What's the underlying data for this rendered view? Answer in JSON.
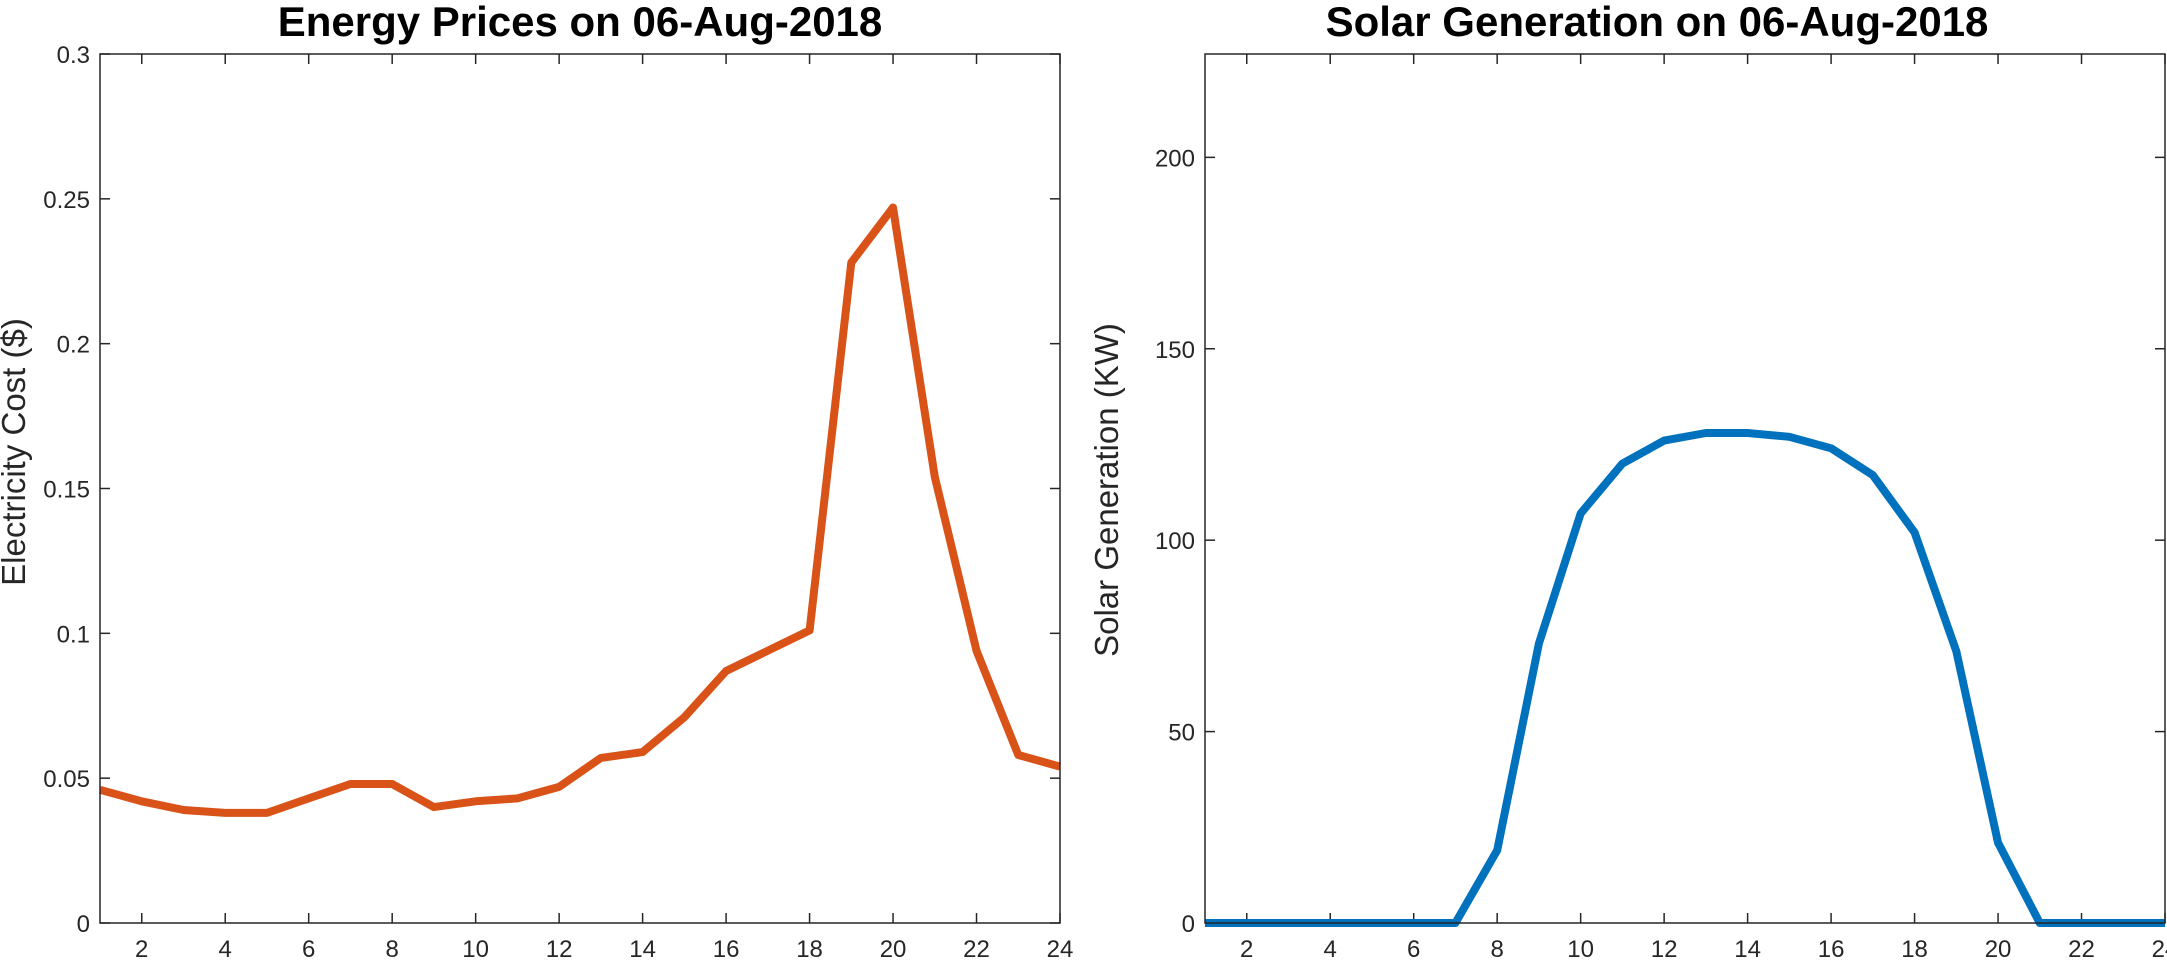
{
  "chart_data": [
    {
      "type": "line",
      "title": "Energy Prices on 06-Aug-2018",
      "xlabel": "",
      "ylabel": "Electricity Cost ($)",
      "xlim": [
        1,
        24
      ],
      "ylim": [
        0,
        0.3
      ],
      "xticks": [
        2,
        4,
        6,
        8,
        10,
        12,
        14,
        16,
        18,
        20,
        22,
        24
      ],
      "xtick_labels": [
        "2",
        "4",
        "6",
        "8",
        "10",
        "12",
        "14",
        "16",
        "18",
        "20",
        "22",
        "24"
      ],
      "yticks": [
        0,
        0.05,
        0.1,
        0.15,
        0.2,
        0.25,
        0.3
      ],
      "ytick_labels": [
        "0",
        "0.05",
        "0.1",
        "0.15",
        "0.2",
        "0.25",
        "0.3"
      ],
      "grid": false,
      "series": [
        {
          "name": "Electricity Cost",
          "color": "#D95319",
          "x": [
            1,
            2,
            3,
            4,
            5,
            6,
            7,
            8,
            9,
            10,
            11,
            12,
            13,
            14,
            15,
            16,
            17,
            18,
            19,
            20,
            21,
            22,
            23,
            24
          ],
          "values": [
            0.046,
            0.042,
            0.039,
            0.038,
            0.038,
            0.043,
            0.048,
            0.048,
            0.04,
            0.042,
            0.043,
            0.047,
            0.057,
            0.059,
            0.071,
            0.087,
            0.094,
            0.101,
            0.228,
            0.247,
            0.154,
            0.094,
            0.058,
            0.054
          ]
        }
      ]
    },
    {
      "type": "line",
      "title": "Solar Generation on 06-Aug-2018",
      "xlabel": "",
      "ylabel": "Solar Generation (KW)",
      "xlim": [
        1,
        24
      ],
      "ylim": [
        0,
        227
      ],
      "xticks": [
        2,
        4,
        6,
        8,
        10,
        12,
        14,
        16,
        18,
        20,
        22,
        24
      ],
      "xtick_labels": [
        "2",
        "4",
        "6",
        "8",
        "10",
        "12",
        "14",
        "16",
        "18",
        "20",
        "22",
        "24"
      ],
      "yticks": [
        0,
        50,
        100,
        150,
        200
      ],
      "ytick_labels": [
        "0",
        "50",
        "100",
        "150",
        "200"
      ],
      "grid": false,
      "series": [
        {
          "name": "Solar Generation",
          "color": "#0072BD",
          "x": [
            1,
            2,
            3,
            4,
            5,
            6,
            7,
            8,
            9,
            10,
            11,
            12,
            13,
            14,
            15,
            16,
            17,
            18,
            19,
            20,
            21,
            22,
            23,
            24
          ],
          "values": [
            0,
            0,
            0,
            0,
            0,
            0,
            0,
            19,
            73,
            107,
            120,
            126,
            128,
            128,
            127,
            124,
            117,
            102,
            71,
            21,
            0,
            0,
            0,
            0
          ]
        }
      ]
    }
  ]
}
